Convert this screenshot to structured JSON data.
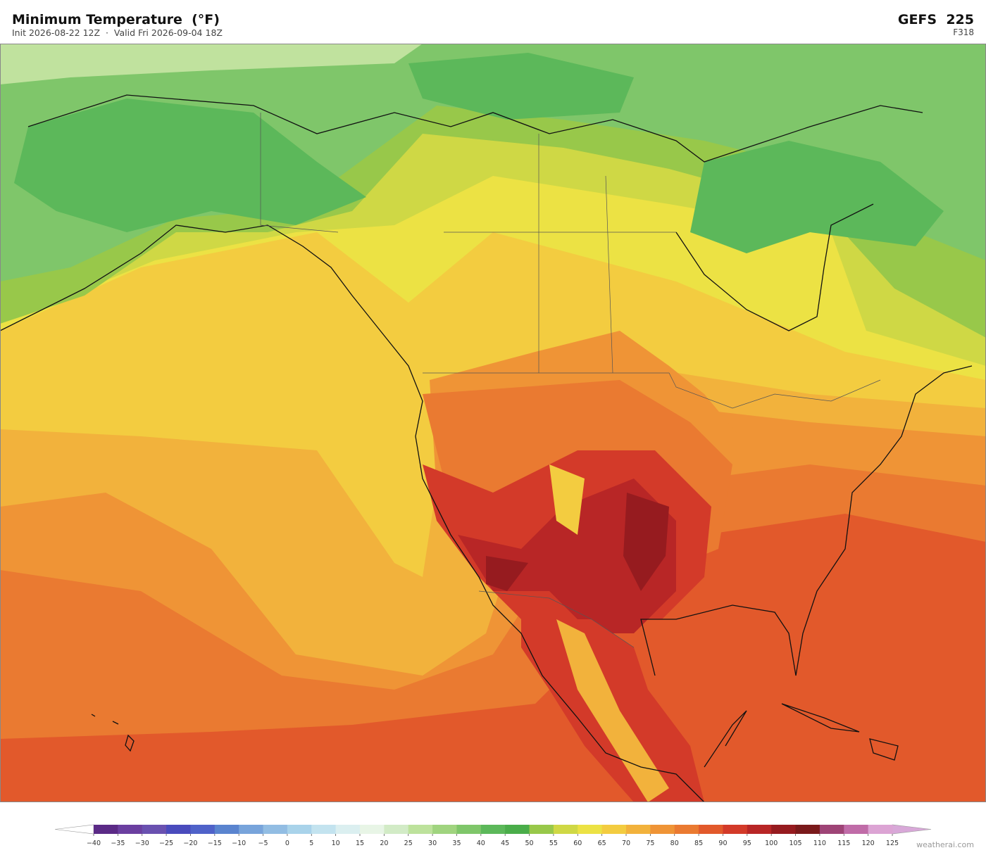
{
  "header": {
    "title": "Minimum Temperature  (°F)",
    "subtitle": "Init 2026-08-22 12Z  ·  Valid Fri 2026-09-04 18Z",
    "model": "GEFS  225",
    "forecast_hour": "F318"
  },
  "colorbar": {
    "range": [
      -40,
      125
    ],
    "ticks": [
      {
        "value": -40,
        "label": "−40"
      },
      {
        "value": -35,
        "label": "−35"
      },
      {
        "value": -30,
        "label": "−30"
      },
      {
        "value": -25,
        "label": "−25"
      },
      {
        "value": -20,
        "label": "−20"
      },
      {
        "value": -15,
        "label": "−15"
      },
      {
        "value": -10,
        "label": "−10"
      },
      {
        "value": -5,
        "label": "−5"
      },
      0,
      5,
      10,
      15,
      20,
      25,
      30,
      35,
      40,
      45,
      50,
      55,
      60,
      65,
      70,
      75,
      80,
      85,
      90,
      95,
      100,
      105,
      110,
      115,
      120,
      125
    ],
    "colors": [
      "#5b2a86",
      "#6b3fa0",
      "#6a51b0",
      "#4a4bbd",
      "#4f62c9",
      "#5a84cf",
      "#78a4db",
      "#92bde3",
      "#a9d3ea",
      "#c3e3ef",
      "#dbeff0",
      "#e8f5e6",
      "#d2ebc6",
      "#bde29c",
      "#a0d47f",
      "#7fc66a",
      "#5cb85a",
      "#4aad4a",
      "#98c84a",
      "#cfd845",
      "#ece244",
      "#f3cc40",
      "#f2b23c",
      "#ef9436",
      "#ea7a31",
      "#e2592b",
      "#d33a29",
      "#b82626",
      "#961b1f",
      "#7a1a1b",
      "#9e4476",
      "#c06ca8",
      "#dca4d4"
    ],
    "under_color": "#ffffff",
    "over_color": "#d8a8d8"
  },
  "footer": {
    "credit": "weatherai.com"
  }
}
